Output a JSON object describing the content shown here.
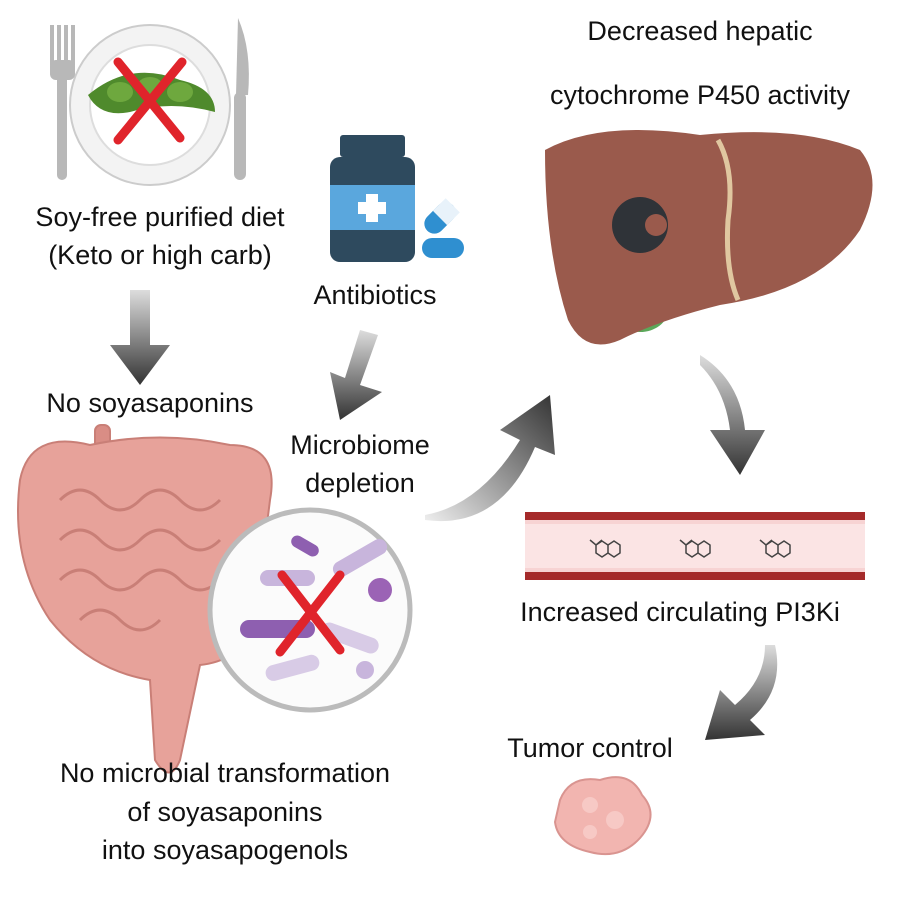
{
  "diet": {
    "line1": "Soy-free purified diet",
    "line2": "(Keto or high carb)"
  },
  "antibiotics": {
    "label": "Antibiotics"
  },
  "no_soyasaponins": {
    "label": "No soyasaponins"
  },
  "microbiome": {
    "line1": "Microbiome",
    "line2": "depletion"
  },
  "liver": {
    "line1": "Decreased hepatic",
    "line2": "cytochrome P450 activity"
  },
  "blood": {
    "label": "Increased circulating PI3Ki"
  },
  "tumor": {
    "label": "Tumor control"
  },
  "transformation": {
    "line1": "No microbial transformation",
    "line2": "of soyasaponins",
    "line3": "into soyasapogenols"
  },
  "colors": {
    "cross": "#e0242b",
    "liver": "#9a5a4c",
    "intestine": "#e7a29a",
    "arrow": "#555555",
    "vessel": "#a52a2a",
    "bottle": "#2e4a5e",
    "pill": "#2f8fd0",
    "tumor": "#f2b5b0"
  }
}
